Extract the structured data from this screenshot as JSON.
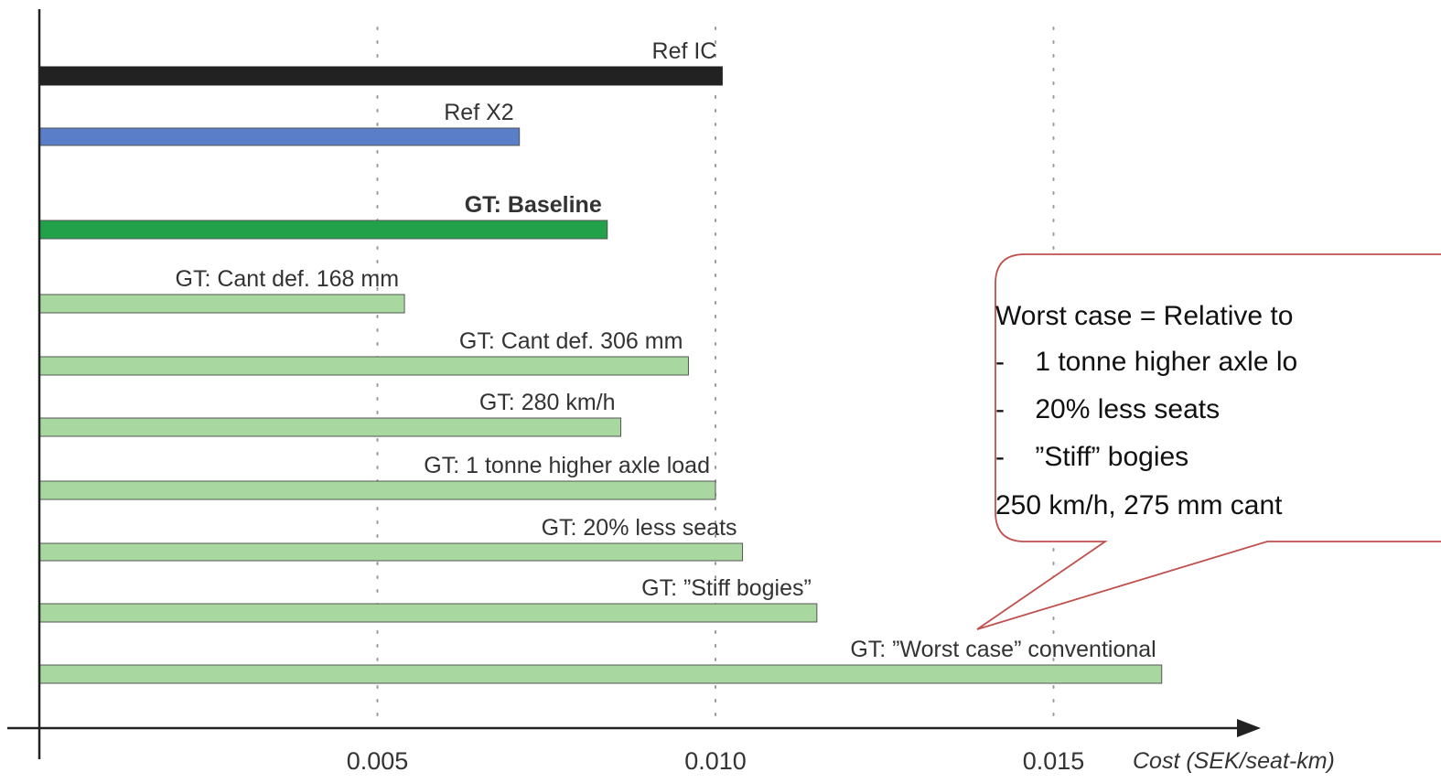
{
  "chart_data": {
    "type": "bar",
    "orientation": "horizontal",
    "xlabel": "Cost (SEK/seat-km)",
    "xlim": [
      0,
      0.019
    ],
    "xticks": [
      0.005,
      0.01,
      0.015
    ],
    "xtick_labels": [
      "0.005",
      "0.010",
      "0.015"
    ],
    "grid": "vertical dotted",
    "bars": [
      {
        "label": "Ref IC",
        "value": 0.0101,
        "color": "#222222",
        "bold": false
      },
      {
        "label": "Ref X2",
        "value": 0.0071,
        "color": "#5b7ec9",
        "bold": false
      },
      {
        "label": "GT: Baseline",
        "value": 0.0084,
        "color": "#22a04a",
        "bold": true
      },
      {
        "label": "GT: Cant def. 168 mm",
        "value": 0.0054,
        "color": "#a8d8a0",
        "bold": false
      },
      {
        "label": "GT: Cant def. 306 mm",
        "value": 0.0096,
        "color": "#a8d8a0",
        "bold": false
      },
      {
        "label": "GT: 280 km/h",
        "value": 0.0086,
        "color": "#a8d8a0",
        "bold": false
      },
      {
        "label": "GT: 1 tonne higher axle load",
        "value": 0.01,
        "color": "#a8d8a0",
        "bold": false
      },
      {
        "label": "GT: 20% less seats",
        "value": 0.0104,
        "color": "#a8d8a0",
        "bold": false
      },
      {
        "label": "GT: ”Stiff bogies”",
        "value": 0.0115,
        "color": "#a8d8a0",
        "bold": false
      },
      {
        "label": "GT: ”Worst case” conventional",
        "value": 0.0166,
        "color": "#a8d8a0",
        "bold": false
      }
    ],
    "annotation": {
      "lines": [
        "Worst case = Relative to",
        "-    1 tonne higher axle lo",
        "-    20% less seats",
        "-    ”Stiff” bogies",
        "250 km/h, 275 mm cant"
      ],
      "border_color": "#c0504d"
    }
  }
}
